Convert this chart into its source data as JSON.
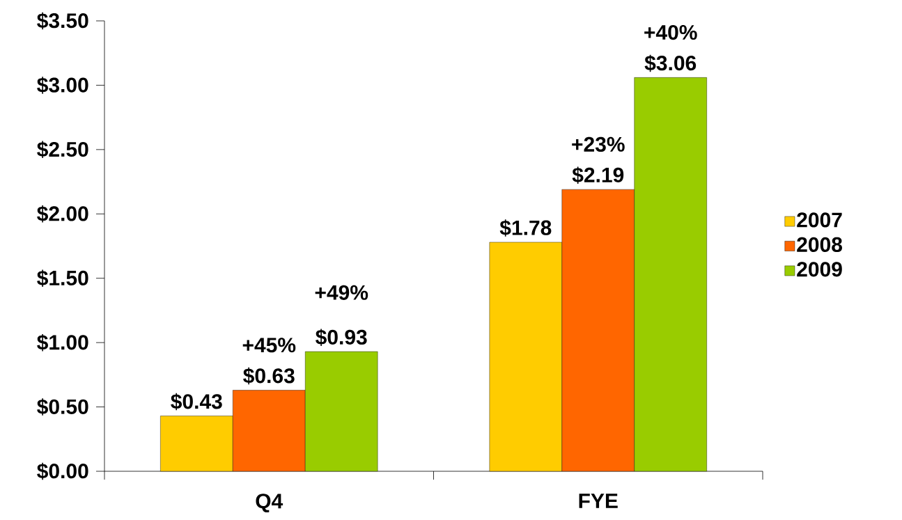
{
  "chart_data": {
    "type": "bar",
    "categories": [
      "Q4",
      "FYE"
    ],
    "series": [
      {
        "name": "2007",
        "color": "#ffcc00",
        "values": [
          0.43,
          1.78
        ],
        "value_labels": [
          "$0.43",
          "$1.78"
        ]
      },
      {
        "name": "2008",
        "color": "#ff6600",
        "values": [
          0.63,
          2.19
        ],
        "value_labels": [
          "$0.63",
          "$2.19"
        ]
      },
      {
        "name": "2009",
        "color": "#99cc00",
        "values": [
          0.93,
          3.06
        ],
        "value_labels": [
          "$0.93",
          "$3.06"
        ]
      }
    ],
    "ylim": [
      0,
      3.5
    ],
    "yticks": [
      {
        "value": 0,
        "label": "$0.00"
      },
      {
        "value": 0.5,
        "label": "$0.50"
      },
      {
        "value": 1,
        "label": "$1.00"
      },
      {
        "value": 1.5,
        "label": "$1.50"
      },
      {
        "value": 2,
        "label": "$2.00"
      },
      {
        "value": 2.5,
        "label": "$2.50"
      },
      {
        "value": 3,
        "label": "$3.00"
      },
      {
        "value": 3.5,
        "label": "$3.50"
      }
    ],
    "annotations": [
      "+45%",
      "+49%",
      "+23%",
      "+40%"
    ],
    "grid": false,
    "legend": "right"
  }
}
